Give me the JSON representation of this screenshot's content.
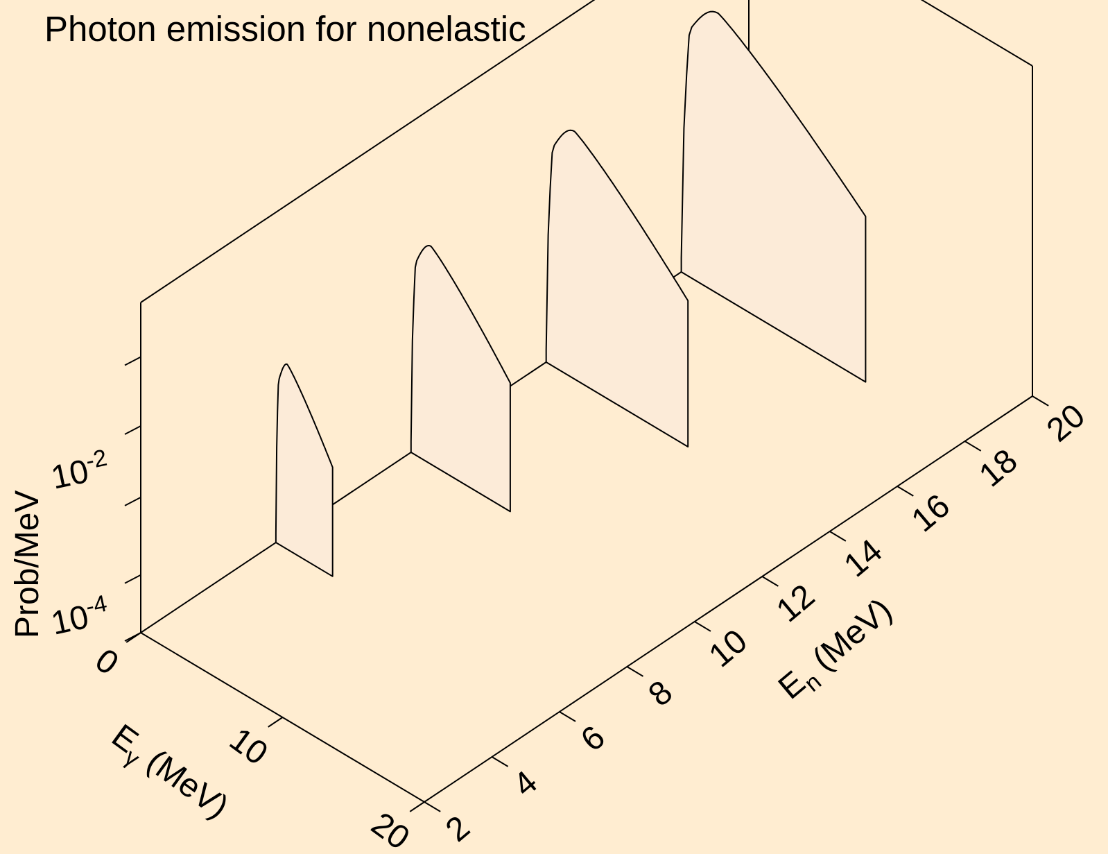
{
  "chart_data": {
    "type": "3d-waterfall",
    "title": "Photon emission for nonelastic",
    "zlabel": "Prob/MeV",
    "zscale": "log",
    "z_ticks": [
      "10",
      "10"
    ],
    "z_tick_exponents": [
      "-2",
      "-4"
    ],
    "xlabel_main": "E",
    "xlabel_sub": "γ",
    "xlabel_units": " (MeV)",
    "x_ticks": [
      "0",
      "10",
      "20"
    ],
    "ylabel_main": "E",
    "ylabel_sub": "n",
    "ylabel_units": " (MeV)",
    "y_ticks": [
      "2",
      "4",
      "6",
      "8",
      "10",
      "12",
      "14",
      "16",
      "18",
      "20"
    ],
    "xlim": [
      0,
      20
    ],
    "ylim": [
      2,
      20
    ],
    "series": [
      {
        "En": 6,
        "Egamma_max": 4,
        "peak_height": 0.56
      },
      {
        "En": 10,
        "Egamma_max": 7,
        "peak_height": 0.66
      },
      {
        "En": 14,
        "Egamma_max": 10,
        "peak_height": 0.75
      },
      {
        "En": 18,
        "Egamma_max": 13,
        "peak_height": 0.85
      }
    ]
  }
}
